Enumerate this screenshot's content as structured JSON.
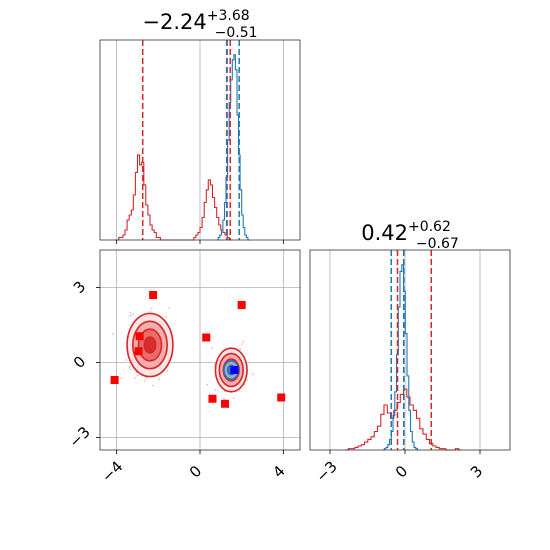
{
  "chart_data": [
    {
      "type": "histogram",
      "panel": "marginal-param-1",
      "title": {
        "value": "−2.24",
        "sup": "+3.68",
        "sub": "−0.51"
      },
      "xlim": [
        -4.8,
        4.8
      ],
      "grid": true,
      "series": [
        {
          "color": "#d62728",
          "bin_edges_start": -4.1,
          "bin_width": 0.1,
          "counts": [
            0,
            0,
            1,
            1,
            2,
            4,
            8,
            10,
            12,
            18,
            27,
            34,
            30,
            31,
            22,
            14,
            10,
            6,
            4,
            3,
            1,
            1,
            0,
            0,
            0,
            0,
            0,
            0,
            0,
            0,
            0,
            0,
            0,
            0,
            0,
            0,
            0,
            0,
            1,
            2,
            3,
            5,
            9,
            15,
            20,
            24,
            22,
            17,
            13,
            9,
            6,
            4,
            3,
            2,
            1,
            0
          ]
        },
        {
          "color": "#1f77b4",
          "bin_edges_start": 0.8,
          "bin_width": 0.075,
          "counts": [
            0,
            1,
            2,
            4,
            8,
            15,
            25,
            40,
            55,
            64,
            72,
            74,
            68,
            50,
            34,
            20,
            10,
            5,
            2,
            1,
            0
          ]
        }
      ],
      "vlines": [
        {
          "x": -2.75,
          "color": "#d62728"
        },
        {
          "x": 1.3,
          "color": "#d62728"
        },
        {
          "x": 1.45,
          "color": "#d62728"
        },
        {
          "x": 1.28,
          "color": "#1f77b4"
        },
        {
          "x": 1.88,
          "color": "#1f77b4"
        }
      ]
    },
    {
      "type": "histogram",
      "panel": "marginal-param-2",
      "title": {
        "value": "0.42",
        "sup": "+0.62",
        "sub": "−0.67"
      },
      "xlim": [
        -3.8,
        4.2
      ],
      "xticks": [
        "−3",
        "0",
        "3"
      ],
      "grid": true,
      "series": [
        {
          "color": "#d62728",
          "bin_edges_start": -2.4,
          "bin_width": 0.13,
          "counts": [
            0,
            1,
            1,
            2,
            3,
            4,
            6,
            8,
            10,
            14,
            18,
            27,
            34,
            28,
            24,
            30,
            36,
            42,
            46,
            40,
            34,
            30,
            24,
            16,
            12,
            8,
            5,
            3,
            2,
            1,
            1,
            0,
            0,
            0,
            1,
            0
          ]
        },
        {
          "color": "#1f77b4",
          "bin_edges_start": -0.9,
          "bin_width": 0.07,
          "counts": [
            0,
            1,
            2,
            4,
            8,
            14,
            26,
            44,
            72,
            108,
            135,
            140,
            120,
            88,
            56,
            30,
            14,
            6,
            2,
            1,
            0
          ]
        }
      ],
      "vlines": [
        {
          "x": -0.3,
          "color": "#d62728"
        },
        {
          "x": 1.05,
          "color": "#d62728"
        },
        {
          "x": -0.55,
          "color": "#1f77b4"
        },
        {
          "x": -0.05,
          "color": "#1f77b4"
        }
      ]
    },
    {
      "type": "scatter",
      "panel": "joint-param-1-vs-param-2",
      "xlim": [
        -4.8,
        4.8
      ],
      "ylim": [
        -3.5,
        4.5
      ],
      "xticks": [
        "−4",
        "0",
        "4"
      ],
      "yticks": [
        "−3",
        "0",
        "3"
      ],
      "grid": true,
      "contours": [
        {
          "color": "#d62728",
          "center": [
            -2.4,
            0.7
          ],
          "sigma": [
            0.55,
            0.55
          ],
          "levels": [
            0.5,
            1,
            1.5,
            2
          ]
        },
        {
          "color": "#d62728",
          "center": [
            1.5,
            -0.3
          ],
          "sigma": [
            0.38,
            0.38
          ],
          "levels": [
            1,
            1.5,
            2
          ]
        },
        {
          "color": "#1f77b4",
          "center": [
            1.5,
            -0.3
          ],
          "sigma": [
            0.22,
            0.2
          ],
          "levels": [
            0.8,
            1.6
          ]
        }
      ],
      "points": {
        "color": "#ff0000",
        "marker": "square",
        "x": [
          -2.25,
          -2.9,
          -2.95,
          -4.1,
          0.3,
          2.0,
          0.6,
          1.2,
          3.9
        ],
        "y": [
          2.7,
          1.05,
          0.45,
          -0.7,
          1.0,
          2.3,
          -1.45,
          -1.65,
          -1.4
        ]
      },
      "truth_point": {
        "x": 1.65,
        "y": -0.3,
        "color": "#0000ff"
      }
    }
  ]
}
